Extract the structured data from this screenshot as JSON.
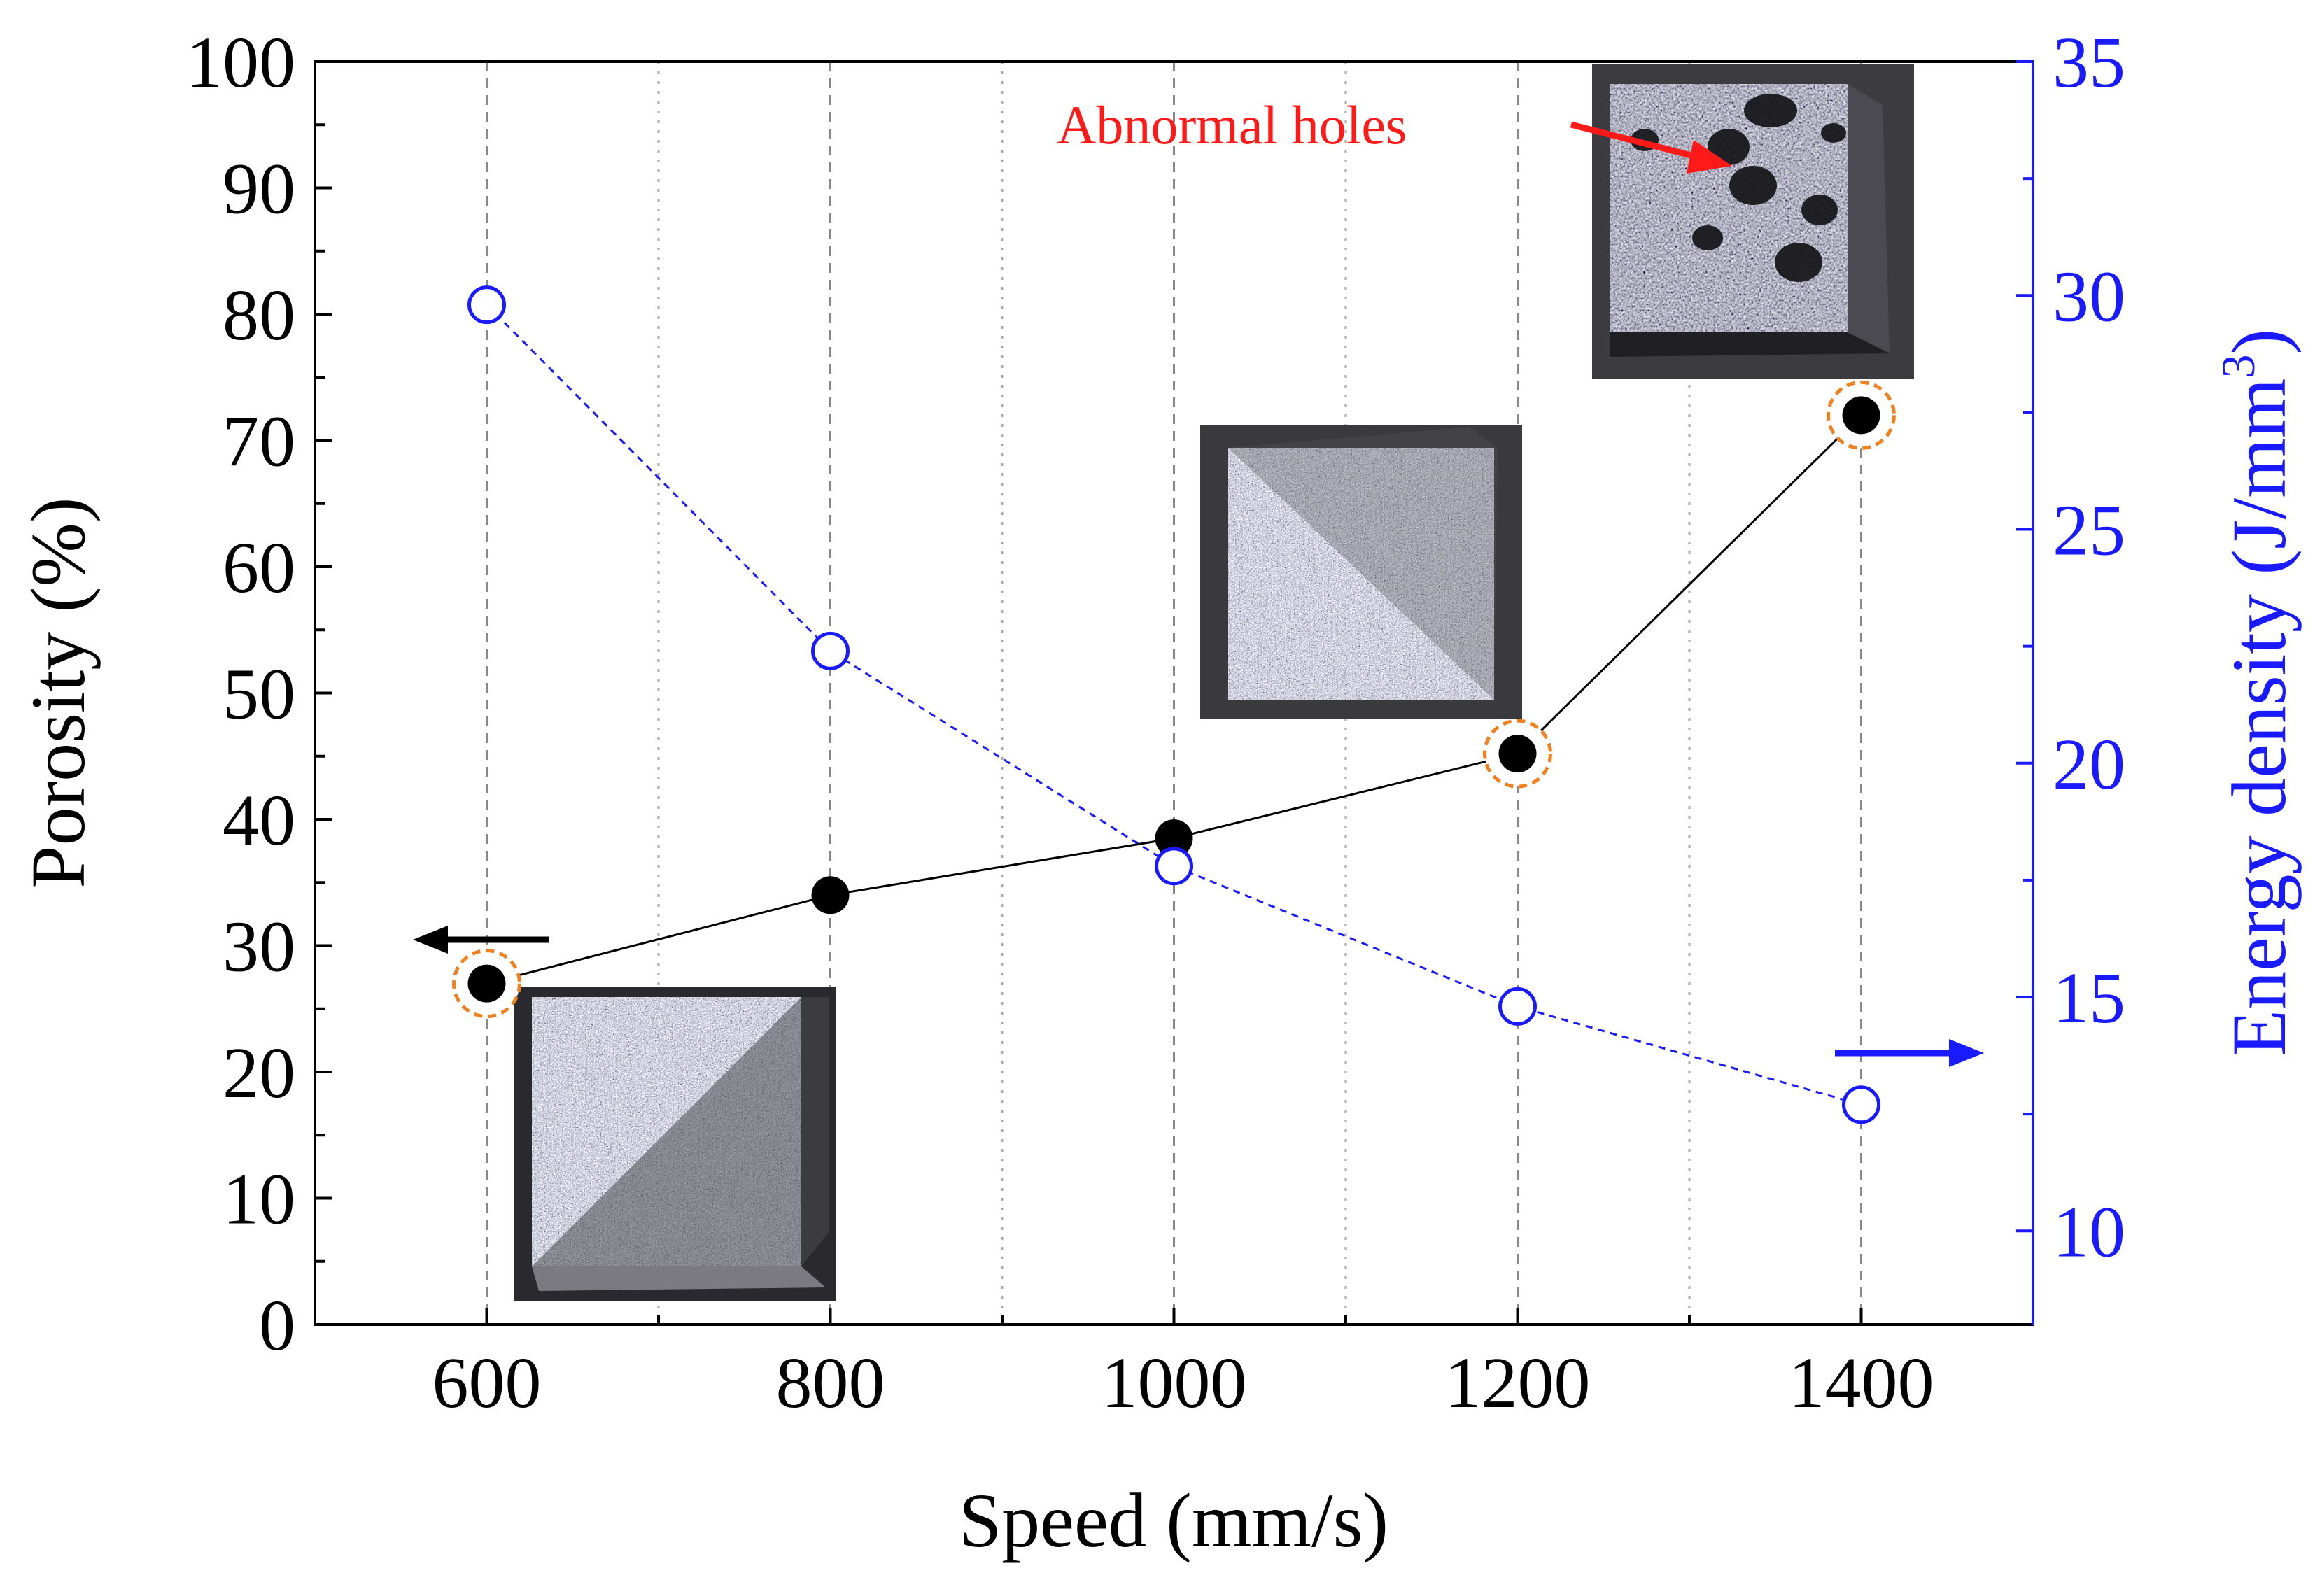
{
  "chart_data": {
    "type": "line",
    "x": [
      600,
      800,
      1000,
      1200,
      1400
    ],
    "xlabel": "Speed (mm/s)",
    "xlim": [
      500,
      1500
    ],
    "x_ticks": [
      "600",
      "800",
      "1000",
      "1200",
      "1400"
    ],
    "x_minor_ticks": [
      700,
      900,
      1100,
      1300
    ],
    "ylabel": "Porosity (%)",
    "ylim": [
      0,
      100
    ],
    "y_ticks": [
      "0",
      "10",
      "20",
      "30",
      "40",
      "50",
      "60",
      "70",
      "80",
      "90",
      "100"
    ],
    "y2label_main": "Energy density (J/mm",
    "y2label_sup": "3",
    "y2label_close": ")",
    "y2lim": [
      8,
      35
    ],
    "y2_ticks": [
      "10",
      "15",
      "20",
      "25",
      "30",
      "35"
    ],
    "grid": "vertical dashed at major x ticks, dotted at minor x ticks",
    "series": [
      {
        "axis": "left",
        "values": [
          27,
          34,
          38.5,
          45.2,
          72
        ],
        "marker": "filled circle",
        "color": "#000000",
        "highlighted": [
          true,
          false,
          false,
          true,
          true
        ],
        "highlight_color": "#f08020"
      },
      {
        "axis": "right",
        "values": [
          29.8,
          22.4,
          17.8,
          14.8,
          12.7
        ],
        "marker": "open circle",
        "line_style": "dashed",
        "color": "#1a1aff"
      }
    ],
    "annotations": [
      {
        "text": "Abnormal holes",
        "color": "#ff1a1a"
      }
    ],
    "arrows": [
      {
        "direction": "left",
        "points_to_axis": "left",
        "color": "#000000"
      },
      {
        "direction": "right",
        "points_to_axis": "right",
        "color": "#1a1aff"
      }
    ],
    "inset_images": [
      {
        "name": "sample-600",
        "surface": "fine uniform pores"
      },
      {
        "name": "sample-1000",
        "surface": "fine uniform pores"
      },
      {
        "name": "sample-1400",
        "surface": "large abnormal holes"
      }
    ]
  }
}
